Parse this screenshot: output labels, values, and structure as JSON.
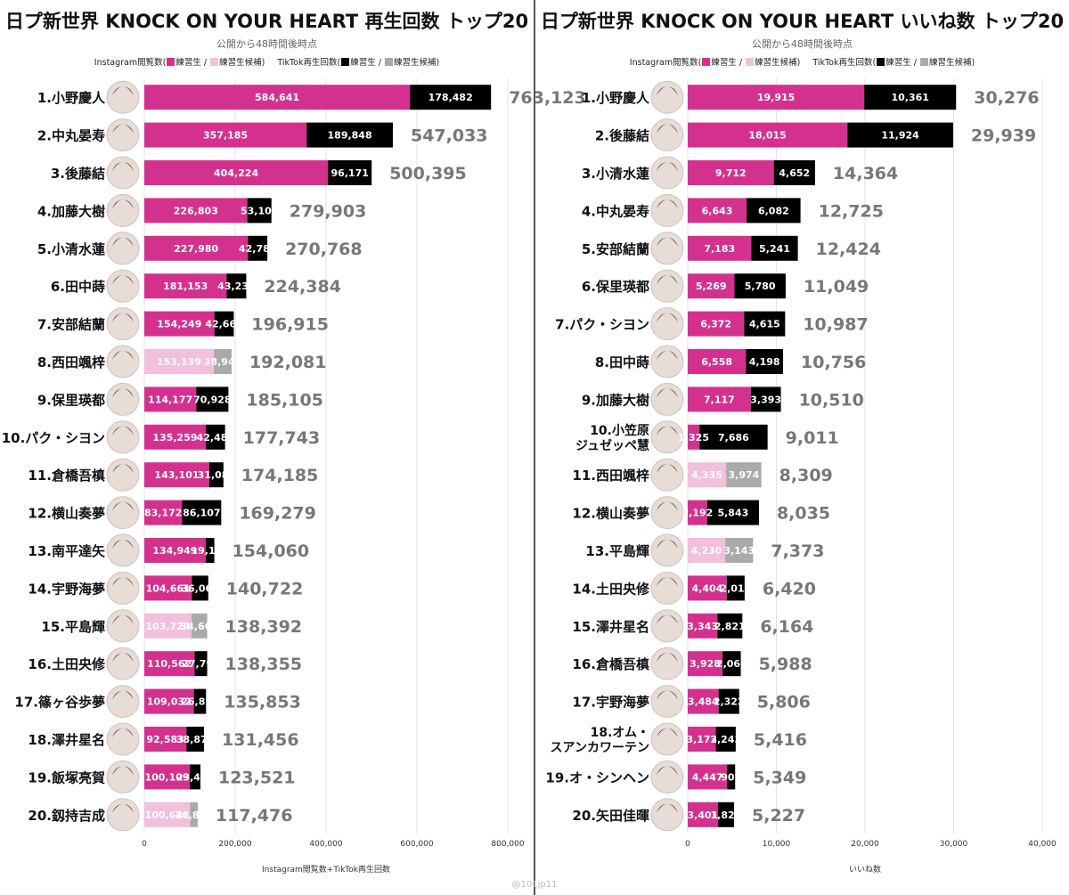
{
  "credit": "@101jp11",
  "legend": {
    "instagram_prefix": "Instagram閲覧数(",
    "trainee": "練習生",
    "sep": " / ",
    "candidate": "練習生候補)",
    "tiktok_prefix": "TikTok再生回数(",
    "trainee2": "練習生",
    "sep2": " / ",
    "candidate2": "練習生候補)"
  },
  "colors": {
    "instagram_trainee": "#d4318f",
    "instagram_candidate": "#f2bfdc",
    "tiktok_trainee": "#000000",
    "tiktok_candidate": "#aaaaaa",
    "total_label": "#777777"
  },
  "chart_data": [
    {
      "type": "bar",
      "orientation": "horizontal",
      "stacked": true,
      "title": "日プ新世界 KNOCK ON YOUR HEART 再生回数 トップ20",
      "subtitle": "公開から48時間後時点",
      "xlabel": "Instagram閲覧数+TikTok再生回数",
      "xlim": [
        0,
        800000
      ],
      "xticks": [
        "0",
        "200,000",
        "400,000",
        "600,000",
        "800,000"
      ],
      "grid": true,
      "legend_position": "top",
      "rows": [
        {
          "label": "1.小野慶人",
          "instagram": 584641,
          "tiktok": 178482,
          "total": "763,123",
          "candidate": false
        },
        {
          "label": "2.中丸晏寿",
          "instagram": 357185,
          "tiktok": 189848,
          "total": "547,033",
          "candidate": false
        },
        {
          "label": "3.後藤結",
          "instagram": 404224,
          "tiktok": 96171,
          "total": "500,395",
          "candidate": false
        },
        {
          "label": "4.加藤大樹",
          "instagram": 226803,
          "tiktok": 53100,
          "total": "279,903",
          "candidate": false
        },
        {
          "label": "5.小清水蓮",
          "instagram": 227980,
          "tiktok": 42788,
          "total": "270,768",
          "candidate": false
        },
        {
          "label": "6.田中蒔",
          "instagram": 181153,
          "tiktok": 43231,
          "total": "224,384",
          "candidate": false
        },
        {
          "label": "7.安部結蘭",
          "instagram": 154249,
          "tiktok": 42666,
          "total": "196,915",
          "candidate": false
        },
        {
          "label": "8.西田颯梓",
          "instagram": 153139,
          "tiktok": 38942,
          "total": "192,081",
          "candidate": true
        },
        {
          "label": "9.保里瑛都",
          "instagram": 114177,
          "tiktok": 70928,
          "total": "185,105",
          "candidate": false
        },
        {
          "label": "10.パク・シヨン",
          "instagram": 135259,
          "tiktok": 42484,
          "total": "177,743",
          "candidate": false
        },
        {
          "label": "11.倉橋吾槙",
          "instagram": 143101,
          "tiktok": 31084,
          "total": "174,185",
          "candidate": false
        },
        {
          "label": "12.横山奏夢",
          "instagram": 83172,
          "tiktok": 86107,
          "total": "169,279",
          "candidate": false
        },
        {
          "label": "13.南平達矢",
          "instagram": 134949,
          "tiktok": 19111,
          "total": "154,060",
          "candidate": false
        },
        {
          "label": "14.宇野海夢",
          "instagram": 104661,
          "tiktok": 36061,
          "total": "140,722",
          "candidate": false
        },
        {
          "label": "15.平島輝",
          "instagram": 103724,
          "tiktok": 34668,
          "total": "138,392",
          "candidate": true
        },
        {
          "label": "16.土田央修",
          "instagram": 110562,
          "tiktok": 27793,
          "total": "138,355",
          "candidate": false
        },
        {
          "label": "17.篠ヶ谷歩夢",
          "instagram": 109032,
          "tiktok": 26821,
          "total": "135,853",
          "candidate": false
        },
        {
          "label": "18.澤井星名",
          "instagram": 92583,
          "tiktok": 38873,
          "total": "131,456",
          "candidate": false
        },
        {
          "label": "19.飯塚亮賀",
          "instagram": 100109,
          "tiktok": 23412,
          "total": "123,521",
          "candidate": false
        },
        {
          "label": "20.釼持吉成",
          "instagram": 100644,
          "tiktok": 16832,
          "total": "117,476",
          "candidate": true
        }
      ]
    },
    {
      "type": "bar",
      "orientation": "horizontal",
      "stacked": true,
      "title": "日プ新世界 KNOCK ON YOUR HEART いいね数 トップ20",
      "subtitle": "公開から48時間後時点",
      "xlabel": "いいね数",
      "xlim": [
        0,
        40000
      ],
      "xticks": [
        "0",
        "10,000",
        "20,000",
        "30,000",
        "40,000"
      ],
      "grid": true,
      "legend_position": "top",
      "rows": [
        {
          "label": "1.小野慶人",
          "instagram": 19915,
          "tiktok": 10361,
          "total": "30,276",
          "candidate": false
        },
        {
          "label": "2.後藤結",
          "instagram": 18015,
          "tiktok": 11924,
          "total": "29,939",
          "candidate": false
        },
        {
          "label": "3.小清水蓮",
          "instagram": 9712,
          "tiktok": 4652,
          "total": "14,364",
          "candidate": false
        },
        {
          "label": "4.中丸晏寿",
          "instagram": 6643,
          "tiktok": 6082,
          "total": "12,725",
          "candidate": false
        },
        {
          "label": "5.安部結蘭",
          "instagram": 7183,
          "tiktok": 5241,
          "total": "12,424",
          "candidate": false
        },
        {
          "label": "6.保里瑛都",
          "instagram": 5269,
          "tiktok": 5780,
          "total": "11,049",
          "candidate": false
        },
        {
          "label": "7.パク・シヨン",
          "instagram": 6372,
          "tiktok": 4615,
          "total": "10,987",
          "candidate": false
        },
        {
          "label": "8.田中蒔",
          "instagram": 6558,
          "tiktok": 4198,
          "total": "10,756",
          "candidate": false
        },
        {
          "label": "9.加藤大樹",
          "instagram": 7117,
          "tiktok": 3393,
          "total": "10,510",
          "candidate": false
        },
        {
          "label": "10.小笠原\nジュゼッペ慧",
          "instagram": 1325,
          "tiktok": 7686,
          "total": "9,011",
          "candidate": false
        },
        {
          "label": "11.西田颯梓",
          "instagram": 4335,
          "tiktok": 3974,
          "total": "8,309",
          "candidate": true
        },
        {
          "label": "12.横山奏夢",
          "instagram": 2192,
          "tiktok": 5843,
          "total": "8,035",
          "candidate": false
        },
        {
          "label": "13.平島輝",
          "instagram": 4230,
          "tiktok": 3143,
          "total": "7,373",
          "candidate": true
        },
        {
          "label": "14.土田央修",
          "instagram": 4404,
          "tiktok": 2016,
          "total": "6,420",
          "candidate": false
        },
        {
          "label": "15.澤井星名",
          "instagram": 3343,
          "tiktok": 2821,
          "total": "6,164",
          "candidate": false
        },
        {
          "label": "16.倉橋吾槙",
          "instagram": 3928,
          "tiktok": 2060,
          "total": "5,988",
          "candidate": false
        },
        {
          "label": "17.宇野海夢",
          "instagram": 3484,
          "tiktok": 2322,
          "total": "5,806",
          "candidate": false
        },
        {
          "label": "18.オム・\nスアンカワーテン",
          "instagram": 3173,
          "tiktok": 2243,
          "total": "5,416",
          "candidate": false
        },
        {
          "label": "19.オ・シンヘン",
          "instagram": 4447,
          "tiktok": 902,
          "total": "5,349",
          "candidate": false
        },
        {
          "label": "20.矢田佳暉",
          "instagram": 3401,
          "tiktok": 1826,
          "total": "5,227",
          "candidate": false
        }
      ]
    }
  ]
}
